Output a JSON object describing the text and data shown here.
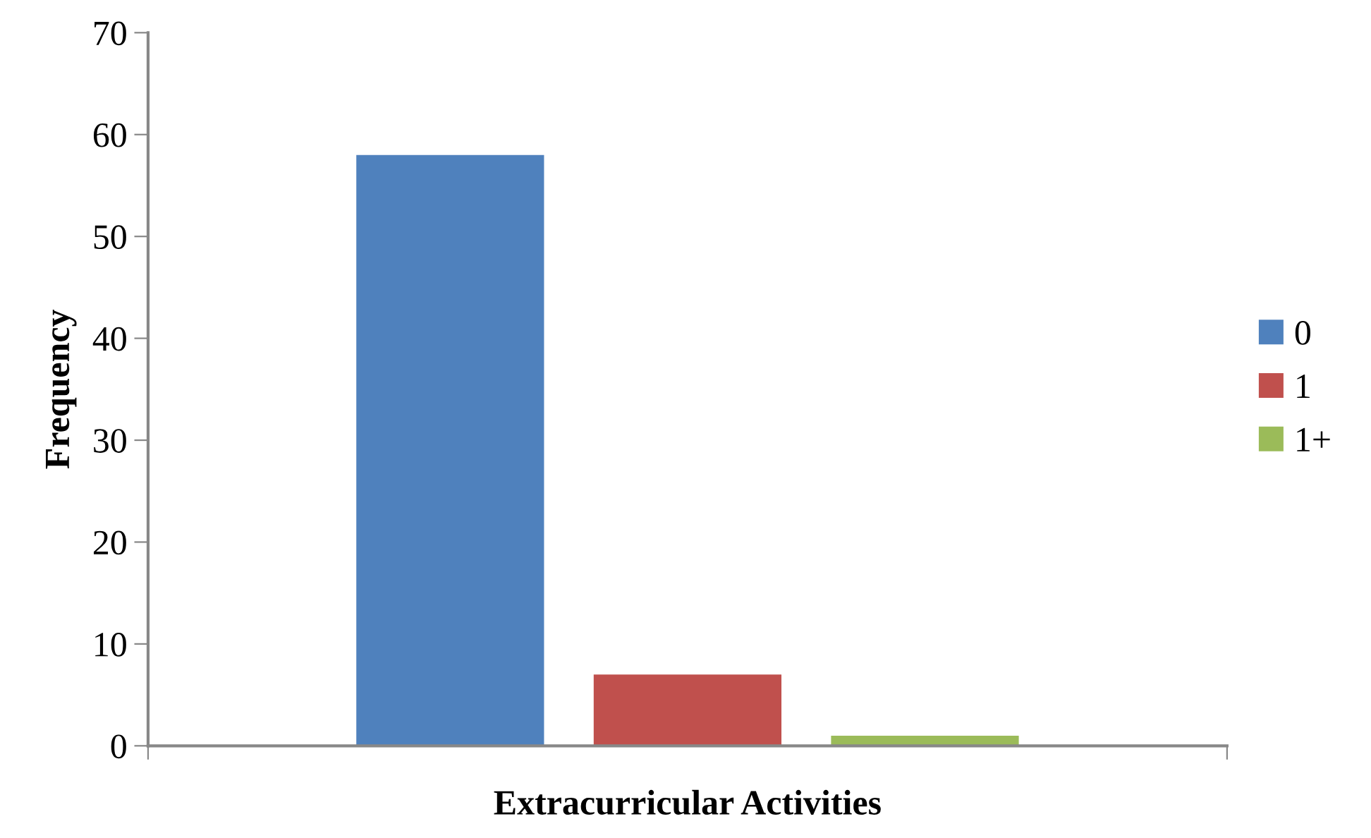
{
  "chart_data": {
    "type": "bar",
    "xlabel": "Extracurricular Activities",
    "ylabel": "Frequency",
    "categories": [
      null
    ],
    "series": [
      {
        "name": "0",
        "color": "#4f81bd",
        "values": [
          58
        ]
      },
      {
        "name": "1",
        "color": "#c0504d",
        "values": [
          7
        ]
      },
      {
        "name": "1+",
        "color": "#9bbb59",
        "values": [
          1
        ]
      }
    ],
    "ylim": [
      0,
      70
    ],
    "yticks": [
      0,
      10,
      20,
      30,
      40,
      50,
      60,
      70
    ],
    "grid": false,
    "legend": "right"
  }
}
